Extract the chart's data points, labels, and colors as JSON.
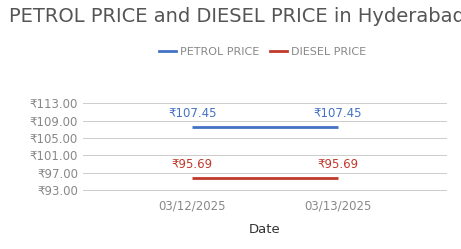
{
  "title": "PETROL PRICE and DIESEL PRICE in Hyderabad",
  "xlabel": "Date",
  "dates": [
    "03/12/2025",
    "03/13/2025"
  ],
  "petrol_values": [
    107.45,
    107.45
  ],
  "diesel_values": [
    95.69,
    95.69
  ],
  "petrol_color": "#4472C4",
  "diesel_color": "#C0392B",
  "ylim": [
    92.0,
    115.0
  ],
  "yticks": [
    93.0,
    97.0,
    101.0,
    105.0,
    109.0,
    113.0
  ],
  "legend_labels": [
    "PETROL PRICE",
    "DIESEL PRICE"
  ],
  "rupee_symbol": "₹",
  "background_color": "#ffffff",
  "grid_color": "#cccccc",
  "title_fontsize": 14,
  "label_fontsize": 8.5,
  "annotation_fontsize": 8.5,
  "legend_fontsize": 8,
  "tick_color": "#888888",
  "title_color": "#555555",
  "xlabel_color": "#333333"
}
